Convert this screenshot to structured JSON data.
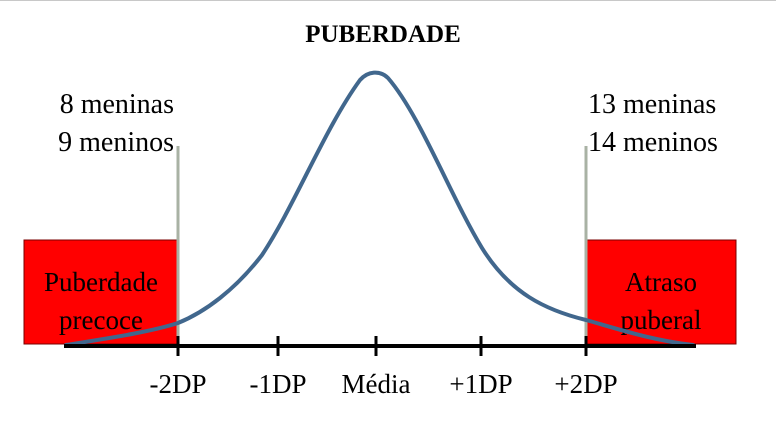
{
  "title": "PUBERDADE",
  "left_count": {
    "girls": "8 meninas",
    "boys": "9 meninos"
  },
  "right_count": {
    "girls": "13 meninas",
    "boys": "14 meninos"
  },
  "left_box": {
    "line1": "Puberdade",
    "line2": "precoce",
    "color": "#ff0000"
  },
  "right_box": {
    "line1": "Atraso",
    "line2": "puberal",
    "color": "#ff0000"
  },
  "axis_ticks": [
    "-2DP",
    "-1DP",
    "Média",
    "+1DP",
    "+2DP"
  ],
  "colors": {
    "curve": "#41678d",
    "axis": "#000000",
    "cutoff_line": "#a9b2a4",
    "box_border": "#7a0000"
  }
}
